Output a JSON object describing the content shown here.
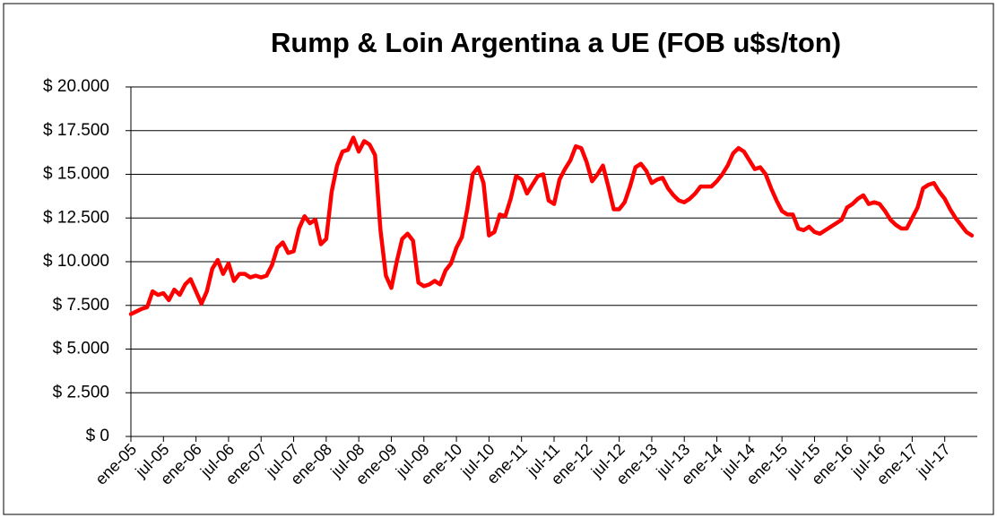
{
  "chart_data": {
    "type": "line",
    "title": "Rump & Loin Argentina a UE (FOB u$s/ton)",
    "categories": [
      "ene-05",
      null,
      null,
      null,
      null,
      null,
      "jul-05",
      null,
      null,
      null,
      null,
      null,
      "ene-06",
      null,
      null,
      null,
      null,
      null,
      "jul-06",
      null,
      null,
      null,
      null,
      null,
      "ene-07",
      null,
      null,
      null,
      null,
      null,
      "jul-07",
      null,
      null,
      null,
      null,
      null,
      "ene-08",
      null,
      null,
      null,
      null,
      null,
      "jul-08",
      null,
      null,
      null,
      null,
      null,
      "ene-09",
      null,
      null,
      null,
      null,
      null,
      "jul-09",
      null,
      null,
      null,
      null,
      null,
      "ene-10",
      null,
      null,
      null,
      null,
      null,
      "jul-10",
      null,
      null,
      null,
      null,
      null,
      "ene-11",
      null,
      null,
      null,
      null,
      null,
      "jul-11",
      null,
      null,
      null,
      null,
      null,
      "ene-12",
      null,
      null,
      null,
      null,
      null,
      "jul-12",
      null,
      null,
      null,
      null,
      null,
      "ene-13",
      null,
      null,
      null,
      null,
      null,
      "jul-13",
      null,
      null,
      null,
      null,
      null,
      "ene-14",
      null,
      null,
      null,
      null,
      null,
      "jul-14",
      null,
      null,
      null,
      null,
      null,
      "ene-15",
      null,
      null,
      null,
      null,
      null,
      "jul-15",
      null,
      null,
      null,
      null,
      null,
      "ene-16",
      null,
      null,
      null,
      null,
      null,
      "jul-16",
      null,
      null,
      null,
      null,
      null,
      "ene-17",
      null,
      null,
      null,
      null,
      null,
      "jul-17",
      null,
      null,
      null,
      null,
      null
    ],
    "values": [
      7000,
      7150,
      7300,
      7400,
      8300,
      8100,
      8200,
      7800,
      8400,
      8100,
      8700,
      9000,
      8300,
      7600,
      8300,
      9600,
      10100,
      9300,
      9900,
      8900,
      9300,
      9300,
      9100,
      9200,
      9100,
      9200,
      9800,
      10800,
      11100,
      10500,
      10600,
      11900,
      12600,
      12200,
      12400,
      11000,
      11300,
      14000,
      15500,
      16300,
      16400,
      17100,
      16300,
      16900,
      16700,
      16100,
      11800,
      9200,
      8500,
      10000,
      11300,
      11600,
      11200,
      8800,
      8600,
      8700,
      8900,
      8700,
      9500,
      9900,
      10800,
      11400,
      13000,
      15000,
      15400,
      14500,
      11500,
      11700,
      12700,
      12600,
      13600,
      14900,
      14700,
      13900,
      14400,
      14900,
      15000,
      13500,
      13300,
      14700,
      15300,
      15800,
      16600,
      16500,
      15700,
      14600,
      15000,
      15500,
      14300,
      13000,
      13000,
      13400,
      14300,
      15400,
      15600,
      15200,
      14500,
      14700,
      14800,
      14200,
      13800,
      13500,
      13400,
      13600,
      13900,
      14300,
      14300,
      14300,
      14600,
      15000,
      15500,
      16200,
      16500,
      16300,
      15800,
      15300,
      15400,
      15000,
      14200,
      13500,
      12900,
      12700,
      12700,
      11900,
      11800,
      12000,
      11700,
      11600,
      11800,
      12000,
      12200,
      12400,
      13100,
      13300,
      13600,
      13800,
      13300,
      13400,
      13300,
      12900,
      12400,
      12100,
      11900,
      11900,
      12500,
      13100,
      14200,
      14400,
      14500,
      14000,
      13600,
      13000,
      12500,
      12100,
      11700,
      11500
    ],
    "color": "#ff0000",
    "ylim": [
      0,
      20000
    ],
    "yticks": [
      {
        "value": 0,
        "label": "$ 0"
      },
      {
        "value": 2500,
        "label": "$ 2.500"
      },
      {
        "value": 5000,
        "label": "$ 5.000"
      },
      {
        "value": 7500,
        "label": "$ 7.500"
      },
      {
        "value": 10000,
        "label": "$ 10.000"
      },
      {
        "value": 12500,
        "label": "$ 12.500"
      },
      {
        "value": 15000,
        "label": "$ 15.000"
      },
      {
        "value": 17500,
        "label": "$ 17.500"
      },
      {
        "value": 20000,
        "label": "$ 20.000"
      }
    ],
    "grid": true
  }
}
